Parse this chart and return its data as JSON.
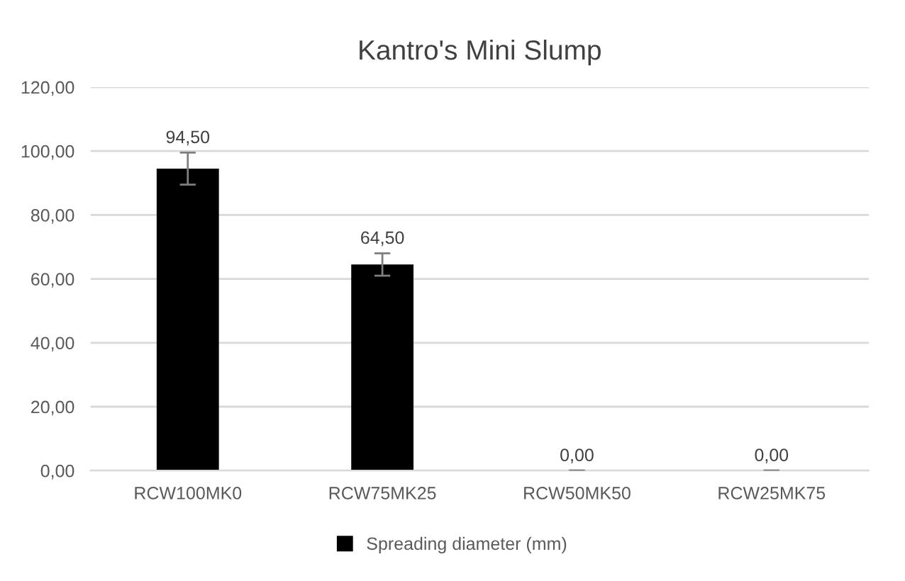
{
  "chart_data": {
    "type": "bar",
    "title": "Kantro's Mini Slump",
    "categories": [
      "RCW100MK0",
      "RCW75MK25",
      "RCW50MK50",
      "RCW25MK75"
    ],
    "series": [
      {
        "name": "Spreading diameter (mm)",
        "color": "#000000",
        "values": [
          94.5,
          64.5,
          0,
          0
        ],
        "errors": [
          5,
          3.5,
          0,
          0
        ],
        "value_labels": [
          "94,50",
          "64,50",
          "0,00",
          "0,00"
        ]
      }
    ],
    "ylim": [
      0,
      120
    ],
    "yticks": [
      {
        "value": 0,
        "label": "0,00"
      },
      {
        "value": 20,
        "label": "20,00"
      },
      {
        "value": 40,
        "label": "40,00"
      },
      {
        "value": 60,
        "label": "60,00"
      },
      {
        "value": 80,
        "label": "80,00"
      },
      {
        "value": 100,
        "label": "100,00"
      },
      {
        "value": 120,
        "label": "120,00"
      }
    ],
    "grid": "y",
    "legend": "bottom"
  }
}
